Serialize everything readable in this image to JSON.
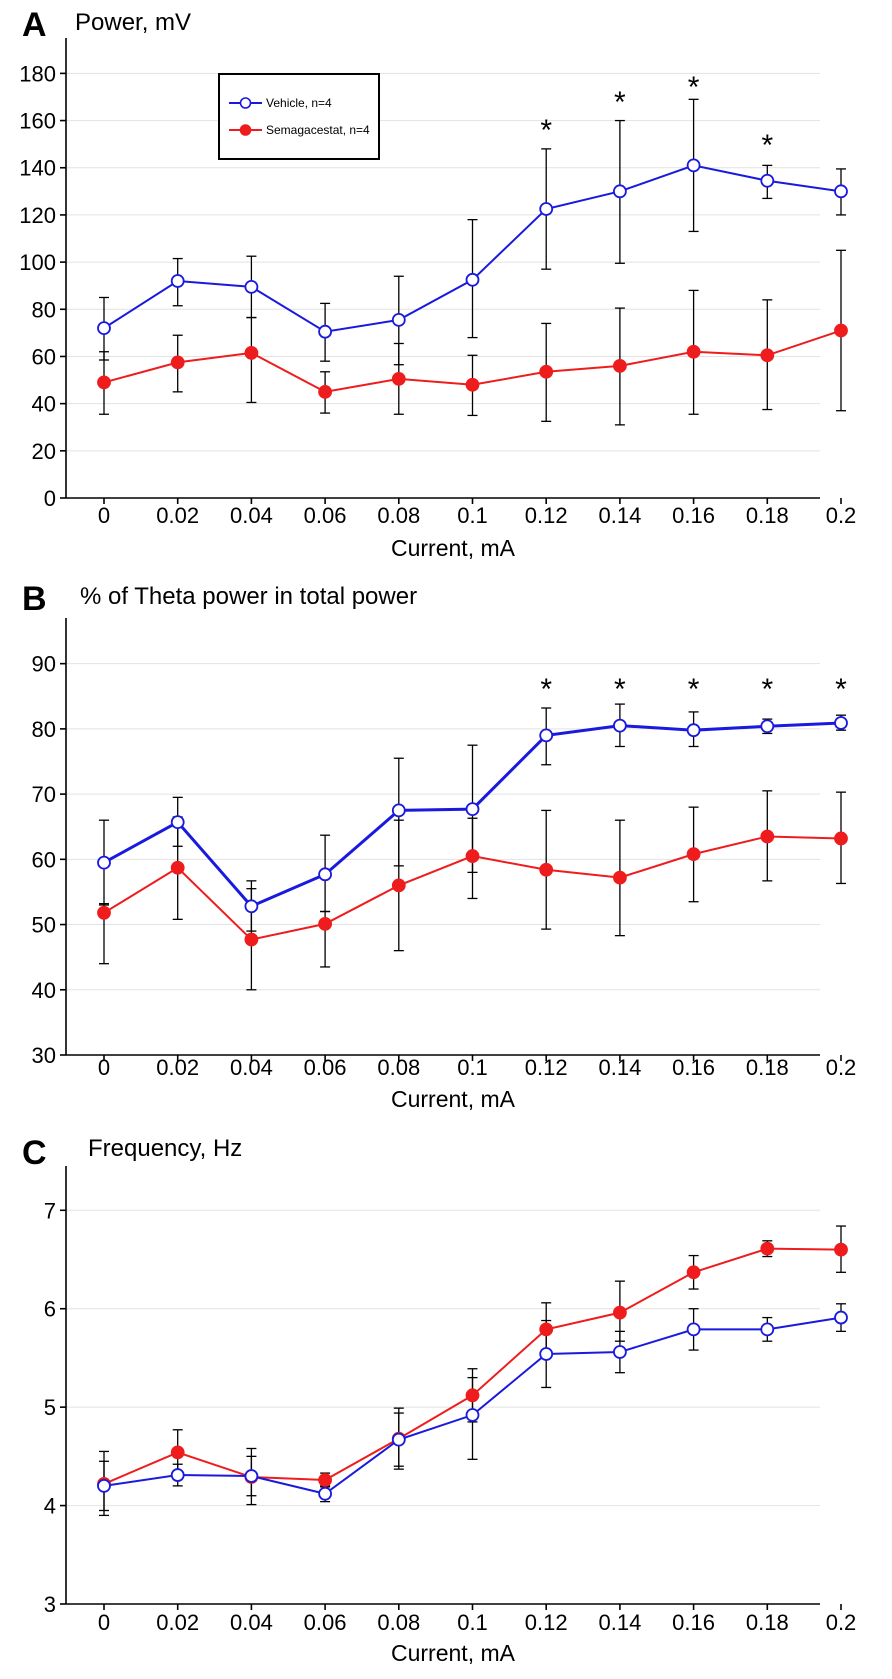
{
  "chart_data": [
    {
      "panel": "A",
      "type": "line",
      "title": "Power, mV",
      "xlabel": "Current, mA",
      "ylabel": "",
      "categories": [
        "0",
        "0.02",
        "0.04",
        "0.06",
        "0.08",
        "0.1",
        "0.12",
        "0.14",
        "0.16",
        "0.18",
        "0.2"
      ],
      "ylim": [
        0,
        195
      ],
      "yticks": [
        0,
        20,
        40,
        60,
        80,
        100,
        120,
        140,
        160,
        180
      ],
      "grid": true,
      "legend": {
        "position": "top-left",
        "entries": [
          "Vehicle, n=4",
          "Semagacestat, n=4"
        ]
      },
      "series": [
        {
          "name": "Vehicle, n=4",
          "color": "#1a1adf",
          "marker": "open-circle",
          "values": [
            72,
            92,
            89.5,
            70.5,
            75.5,
            92.5,
            122.5,
            130,
            141,
            134.5,
            130
          ],
          "err_low": [
            58.5,
            81.5,
            76.5,
            58,
            56.5,
            68,
            97,
            99.5,
            113,
            127,
            120
          ],
          "err_high": [
            85,
            101.5,
            102.5,
            82.5,
            94,
            118,
            148,
            160,
            169,
            141,
            139.5
          ]
        },
        {
          "name": "Semagacestat, n=4",
          "color": "#ee1c1c",
          "marker": "filled-circle",
          "values": [
            49,
            57.5,
            61.5,
            45,
            50.5,
            48,
            53.5,
            56,
            62,
            60.5,
            71
          ],
          "err_low": [
            35.5,
            45,
            40.5,
            36,
            35.5,
            35,
            32.5,
            31,
            35.5,
            37.5,
            37
          ],
          "err_high": [
            62,
            69,
            76.5,
            53.5,
            65.5,
            60.5,
            74,
            80.5,
            88,
            84,
            105
          ]
        }
      ],
      "significance": [
        {
          "category": "0.12",
          "mark": "*"
        },
        {
          "category": "0.14",
          "mark": "*"
        },
        {
          "category": "0.16",
          "mark": "*"
        },
        {
          "category": "0.18",
          "mark": "*"
        }
      ]
    },
    {
      "panel": "B",
      "type": "line",
      "title": "% of Theta power in total power",
      "xlabel": "Current, mA",
      "ylabel": "",
      "categories": [
        "0",
        "0.02",
        "0.04",
        "0.06",
        "0.08",
        "0.1",
        "0.12",
        "0.14",
        "0.16",
        "0.18",
        "0.2"
      ],
      "ylim": [
        30,
        97
      ],
      "yticks": [
        30,
        40,
        50,
        60,
        70,
        80,
        90
      ],
      "grid": true,
      "series": [
        {
          "name": "Vehicle, n=4",
          "color": "#1a1adf",
          "marker": "open-circle",
          "values": [
            59.5,
            65.7,
            52.8,
            57.7,
            67.5,
            67.7,
            79,
            80.5,
            79.8,
            80.4,
            80.9
          ],
          "err_low": [
            53,
            62,
            49,
            52,
            59,
            58,
            74.5,
            77.3,
            77.3,
            79.3,
            79.8
          ],
          "err_high": [
            66,
            69.5,
            56.7,
            63.7,
            75.5,
            77.5,
            83.2,
            83.8,
            82.6,
            81.5,
            82.1
          ]
        },
        {
          "name": "Semagacestat, n=4",
          "color": "#ee1c1c",
          "marker": "filled-circle",
          "values": [
            51.8,
            58.7,
            47.7,
            50.1,
            56,
            60.5,
            58.4,
            57.2,
            60.8,
            63.5,
            63.2
          ],
          "err_low": [
            44,
            50.8,
            40,
            43.5,
            46,
            54,
            49.3,
            48.3,
            53.5,
            56.7,
            56.3
          ],
          "err_high": [
            53.2,
            66.5,
            55.5,
            52,
            66,
            66.3,
            67.5,
            66,
            68,
            70.5,
            70.3
          ]
        }
      ],
      "significance": [
        {
          "category": "0.12",
          "mark": "*"
        },
        {
          "category": "0.14",
          "mark": "*"
        },
        {
          "category": "0.16",
          "mark": "*"
        },
        {
          "category": "0.18",
          "mark": "*"
        },
        {
          "category": "0.2",
          "mark": "*"
        }
      ]
    },
    {
      "panel": "C",
      "type": "line",
      "title": "Frequency, Hz",
      "xlabel": "Current, mA",
      "ylabel": "",
      "categories": [
        "0",
        "0.02",
        "0.04",
        "0.06",
        "0.08",
        "0.1",
        "0.12",
        "0.14",
        "0.16",
        "0.18",
        "0.2"
      ],
      "ylim": [
        3,
        7.45
      ],
      "yticks": [
        3,
        4,
        5,
        6,
        7
      ],
      "grid": true,
      "series": [
        {
          "name": "Vehicle, n=4",
          "color": "#1a1adf",
          "marker": "open-circle",
          "values": [
            4.2,
            4.31,
            4.3,
            4.12,
            4.67,
            4.92,
            5.54,
            5.56,
            5.79,
            5.79,
            5.91
          ],
          "err_low": [
            3.95,
            4.2,
            4.1,
            4.04,
            4.4,
            4.47,
            5.2,
            5.35,
            5.58,
            5.67,
            5.77
          ],
          "err_high": [
            4.45,
            4.42,
            4.5,
            4.2,
            4.94,
            5.3,
            5.88,
            5.77,
            6,
            5.91,
            6.05
          ]
        },
        {
          "name": "Semagacestat, n=4",
          "color": "#ee1c1c",
          "marker": "filled-circle",
          "values": [
            4.22,
            4.54,
            4.29,
            4.26,
            4.68,
            5.12,
            5.79,
            5.96,
            6.37,
            6.61,
            6.6
          ],
          "err_low": [
            3.9,
            4.32,
            4.01,
            4.19,
            4.37,
            4.85,
            5.53,
            5.67,
            6.2,
            6.53,
            6.37
          ],
          "err_high": [
            4.55,
            4.77,
            4.58,
            4.33,
            4.99,
            5.39,
            6.06,
            6.28,
            6.54,
            6.69,
            6.84
          ]
        }
      ],
      "significance": []
    }
  ]
}
